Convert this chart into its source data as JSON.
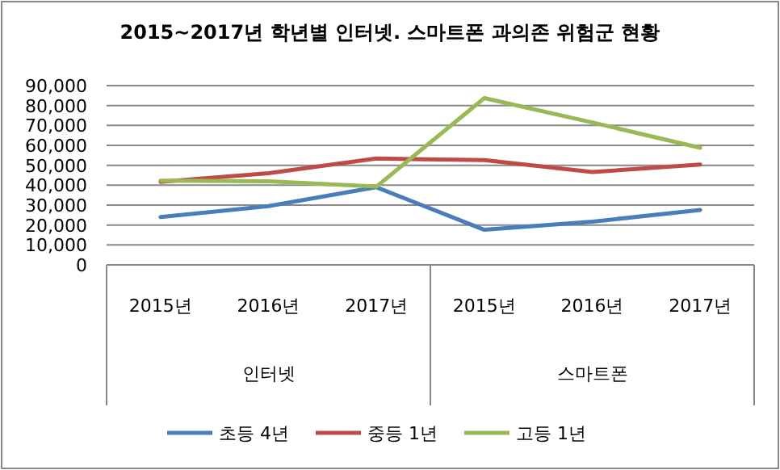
{
  "chart_data": {
    "type": "line",
    "title": "2015~2017년 학년별 인터넷. 스마트폰 과의존 위험군 현황",
    "categories": [
      "2015년",
      "2016년",
      "2017년",
      "2015년",
      "2016년",
      "2017년"
    ],
    "annotations": [
      "인터넷",
      "스마트폰"
    ],
    "series": [
      {
        "name": "초등 4년",
        "color": "#4a7ebb",
        "values": [
          24000,
          29500,
          39000,
          17600,
          21700,
          27600
        ]
      },
      {
        "name": "중등 1년",
        "color": "#be4b48",
        "values": [
          41700,
          46000,
          53400,
          52600,
          46600,
          50400
        ]
      },
      {
        "name": "고등 1년",
        "color": "#98b954",
        "values": [
          42300,
          42000,
          39300,
          83700,
          71500,
          58800
        ]
      }
    ],
    "ylim": [
      0,
      90000
    ],
    "yticks": [
      {
        "value": 0,
        "label": "0"
      },
      {
        "value": 10000,
        "label": "10,000"
      },
      {
        "value": 20000,
        "label": "20,000"
      },
      {
        "value": 30000,
        "label": "30,000"
      },
      {
        "value": 40000,
        "label": "40,000"
      },
      {
        "value": 50000,
        "label": "50,000"
      },
      {
        "value": 60000,
        "label": "60,000"
      },
      {
        "value": 70000,
        "label": "70,000"
      },
      {
        "value": 80000,
        "label": "80,000"
      },
      {
        "value": 90000,
        "label": "90,000"
      }
    ],
    "grid": "y",
    "legend": "bottom",
    "marker": "none",
    "line_style": "solid"
  }
}
